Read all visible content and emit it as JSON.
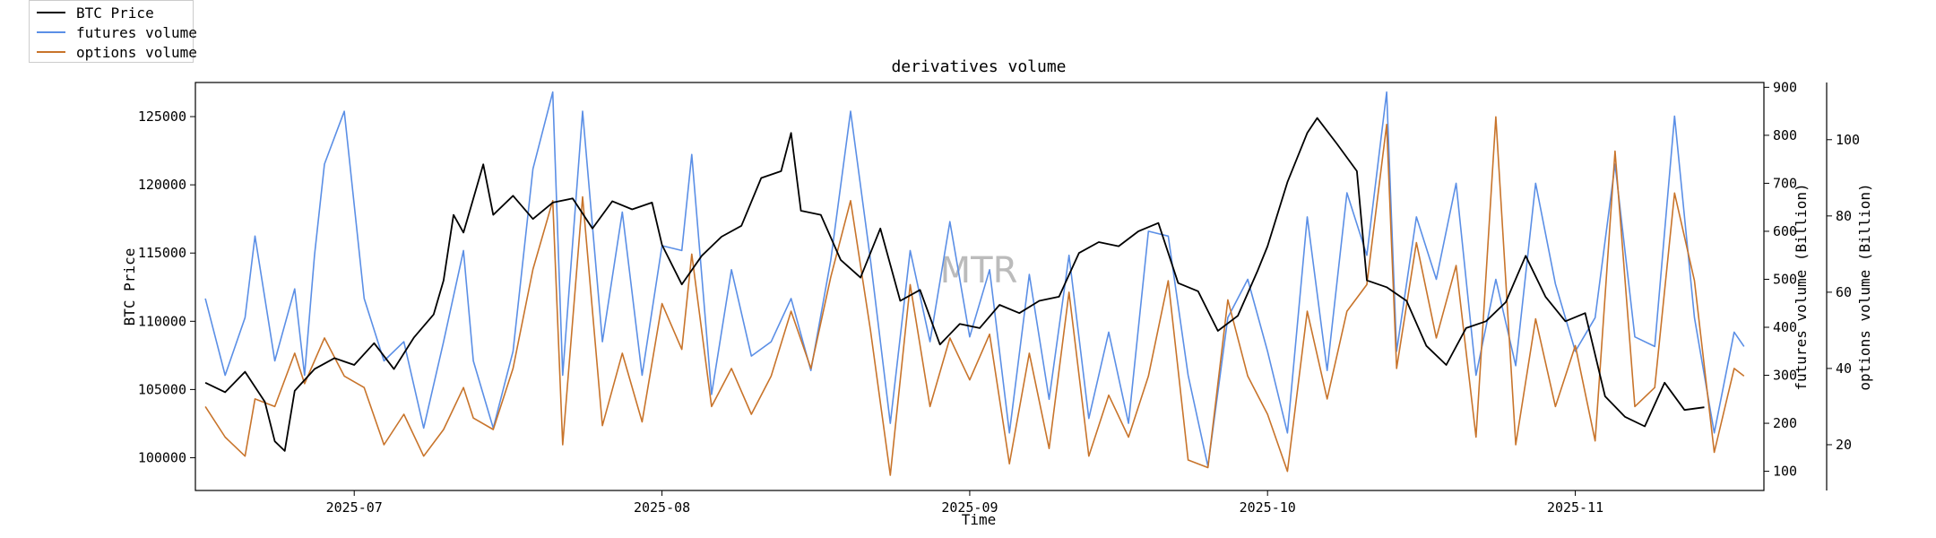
{
  "chart_data": {
    "type": "line",
    "title": "derivatives volume",
    "xlabel": "Time",
    "watermark": "MTR",
    "x_ticks": [
      "2025-07",
      "2025-08",
      "2025-09",
      "2025-10",
      "2025-11"
    ],
    "x_range": [
      "2025-06-15",
      "2025-11-20"
    ],
    "y_left": {
      "label": "BTC Price",
      "ticks": [
        100000,
        105000,
        110000,
        115000,
        120000,
        125000
      ],
      "range": [
        97600,
        127500
      ]
    },
    "y_right1": {
      "label": "futures volume (Billion)",
      "ticks": [
        100,
        200,
        300,
        400,
        500,
        600,
        700,
        800,
        900
      ],
      "range": [
        60,
        910
      ]
    },
    "y_right2": {
      "label": "options volume (Billion)",
      "ticks": [
        20,
        40,
        60,
        80,
        100
      ],
      "range": [
        8,
        115
      ]
    },
    "grid": false,
    "legend_position": "top-left",
    "series": [
      {
        "name": "BTC Price",
        "axis": "left",
        "color": "#000000",
        "points": [
          [
            "2025-06-16",
            105500
          ],
          [
            "2025-06-18",
            104800
          ],
          [
            "2025-06-20",
            106300
          ],
          [
            "2025-06-22",
            104100
          ],
          [
            "2025-06-23",
            101200
          ],
          [
            "2025-06-24",
            100500
          ],
          [
            "2025-06-25",
            104900
          ],
          [
            "2025-06-27",
            106500
          ],
          [
            "2025-06-29",
            107300
          ],
          [
            "2025-07-01",
            106800
          ],
          [
            "2025-07-03",
            108400
          ],
          [
            "2025-07-05",
            106500
          ],
          [
            "2025-07-07",
            108800
          ],
          [
            "2025-07-09",
            110500
          ],
          [
            "2025-07-10",
            113000
          ],
          [
            "2025-07-11",
            117800
          ],
          [
            "2025-07-12",
            116500
          ],
          [
            "2025-07-14",
            121500
          ],
          [
            "2025-07-15",
            117800
          ],
          [
            "2025-07-17",
            119200
          ],
          [
            "2025-07-19",
            117500
          ],
          [
            "2025-07-21",
            118700
          ],
          [
            "2025-07-23",
            119000
          ],
          [
            "2025-07-25",
            116800
          ],
          [
            "2025-07-27",
            118800
          ],
          [
            "2025-07-29",
            118200
          ],
          [
            "2025-07-31",
            118700
          ],
          [
            "2025-08-01",
            115600
          ],
          [
            "2025-08-03",
            112700
          ],
          [
            "2025-08-05",
            114800
          ],
          [
            "2025-08-07",
            116200
          ],
          [
            "2025-08-09",
            117000
          ],
          [
            "2025-08-11",
            120500
          ],
          [
            "2025-08-13",
            121000
          ],
          [
            "2025-08-14",
            123800
          ],
          [
            "2025-08-15",
            118100
          ],
          [
            "2025-08-17",
            117800
          ],
          [
            "2025-08-19",
            114500
          ],
          [
            "2025-08-21",
            113200
          ],
          [
            "2025-08-23",
            116800
          ],
          [
            "2025-08-25",
            111500
          ],
          [
            "2025-08-27",
            112300
          ],
          [
            "2025-08-29",
            108300
          ],
          [
            "2025-08-31",
            109800
          ],
          [
            "2025-09-02",
            109500
          ],
          [
            "2025-09-04",
            111200
          ],
          [
            "2025-09-06",
            110600
          ],
          [
            "2025-09-08",
            111500
          ],
          [
            "2025-09-10",
            111800
          ],
          [
            "2025-09-12",
            115000
          ],
          [
            "2025-09-14",
            115800
          ],
          [
            "2025-09-16",
            115500
          ],
          [
            "2025-09-18",
            116600
          ],
          [
            "2025-09-20",
            117200
          ],
          [
            "2025-09-22",
            112800
          ],
          [
            "2025-09-24",
            112200
          ],
          [
            "2025-09-26",
            109300
          ],
          [
            "2025-09-28",
            110400
          ],
          [
            "2025-09-30",
            113700
          ],
          [
            "2025-10-01",
            115500
          ],
          [
            "2025-10-03",
            120200
          ],
          [
            "2025-10-05",
            123800
          ],
          [
            "2025-10-06",
            124900
          ],
          [
            "2025-10-08",
            123000
          ],
          [
            "2025-10-10",
            121000
          ],
          [
            "2025-10-11",
            113000
          ],
          [
            "2025-10-13",
            112500
          ],
          [
            "2025-10-15",
            111500
          ],
          [
            "2025-10-17",
            108200
          ],
          [
            "2025-10-19",
            106800
          ],
          [
            "2025-10-21",
            109500
          ],
          [
            "2025-10-23",
            110000
          ],
          [
            "2025-10-25",
            111400
          ],
          [
            "2025-10-27",
            114800
          ],
          [
            "2025-10-29",
            111800
          ],
          [
            "2025-10-31",
            110000
          ],
          [
            "2025-11-02",
            110600
          ],
          [
            "2025-11-04",
            104500
          ],
          [
            "2025-11-06",
            103000
          ],
          [
            "2025-11-08",
            102300
          ],
          [
            "2025-11-10",
            105500
          ],
          [
            "2025-11-12",
            103500
          ],
          [
            "2025-11-14",
            103700
          ]
        ]
      },
      {
        "name": "futures volume",
        "axis": "right1",
        "color": "#5b8fe6",
        "points": [
          [
            "2025-06-16",
            460
          ],
          [
            "2025-06-18",
            300
          ],
          [
            "2025-06-20",
            420
          ],
          [
            "2025-06-21",
            590
          ],
          [
            "2025-06-23",
            330
          ],
          [
            "2025-06-25",
            480
          ],
          [
            "2025-06-26",
            300
          ],
          [
            "2025-06-27",
            550
          ],
          [
            "2025-06-28",
            740
          ],
          [
            "2025-06-30",
            850
          ],
          [
            "2025-07-02",
            460
          ],
          [
            "2025-07-04",
            330
          ],
          [
            "2025-07-06",
            370
          ],
          [
            "2025-07-08",
            190
          ],
          [
            "2025-07-10",
            370
          ],
          [
            "2025-07-12",
            560
          ],
          [
            "2025-07-13",
            330
          ],
          [
            "2025-07-15",
            190
          ],
          [
            "2025-07-17",
            350
          ],
          [
            "2025-07-19",
            730
          ],
          [
            "2025-07-21",
            890
          ],
          [
            "2025-07-22",
            300
          ],
          [
            "2025-07-24",
            850
          ],
          [
            "2025-07-26",
            370
          ],
          [
            "2025-07-28",
            640
          ],
          [
            "2025-07-30",
            300
          ],
          [
            "2025-08-01",
            570
          ],
          [
            "2025-08-03",
            560
          ],
          [
            "2025-08-04",
            760
          ],
          [
            "2025-08-06",
            260
          ],
          [
            "2025-08-08",
            520
          ],
          [
            "2025-08-10",
            340
          ],
          [
            "2025-08-12",
            370
          ],
          [
            "2025-08-14",
            460
          ],
          [
            "2025-08-16",
            310
          ],
          [
            "2025-08-18",
            540
          ],
          [
            "2025-08-20",
            850
          ],
          [
            "2025-08-22",
            540
          ],
          [
            "2025-08-24",
            200
          ],
          [
            "2025-08-26",
            560
          ],
          [
            "2025-08-28",
            370
          ],
          [
            "2025-08-30",
            620
          ],
          [
            "2025-09-01",
            380
          ],
          [
            "2025-09-03",
            520
          ],
          [
            "2025-09-05",
            180
          ],
          [
            "2025-09-07",
            510
          ],
          [
            "2025-09-09",
            250
          ],
          [
            "2025-09-11",
            550
          ],
          [
            "2025-09-13",
            210
          ],
          [
            "2025-09-15",
            390
          ],
          [
            "2025-09-17",
            200
          ],
          [
            "2025-09-19",
            600
          ],
          [
            "2025-09-21",
            590
          ],
          [
            "2025-09-23",
            300
          ],
          [
            "2025-09-25",
            110
          ],
          [
            "2025-09-27",
            420
          ],
          [
            "2025-09-29",
            500
          ],
          [
            "2025-10-01",
            350
          ],
          [
            "2025-10-03",
            180
          ],
          [
            "2025-10-05",
            630
          ],
          [
            "2025-10-07",
            310
          ],
          [
            "2025-10-09",
            680
          ],
          [
            "2025-10-11",
            550
          ],
          [
            "2025-10-13",
            890
          ],
          [
            "2025-10-14",
            350
          ],
          [
            "2025-10-16",
            630
          ],
          [
            "2025-10-18",
            500
          ],
          [
            "2025-10-20",
            700
          ],
          [
            "2025-10-22",
            300
          ],
          [
            "2025-10-24",
            500
          ],
          [
            "2025-10-26",
            320
          ],
          [
            "2025-10-28",
            700
          ],
          [
            "2025-10-30",
            490
          ],
          [
            "2025-11-01",
            350
          ],
          [
            "2025-11-03",
            420
          ],
          [
            "2025-11-05",
            740
          ],
          [
            "2025-11-07",
            380
          ],
          [
            "2025-11-09",
            360
          ],
          [
            "2025-11-11",
            840
          ],
          [
            "2025-11-13",
            420
          ],
          [
            "2025-11-15",
            180
          ],
          [
            "2025-11-17",
            390
          ],
          [
            "2025-11-18",
            360
          ]
        ]
      },
      {
        "name": "options volume",
        "axis": "right2",
        "color": "#c8742b",
        "points": [
          [
            "2025-06-16",
            30
          ],
          [
            "2025-06-18",
            22
          ],
          [
            "2025-06-20",
            17
          ],
          [
            "2025-06-21",
            32
          ],
          [
            "2025-06-23",
            30
          ],
          [
            "2025-06-25",
            44
          ],
          [
            "2025-06-26",
            36
          ],
          [
            "2025-06-28",
            48
          ],
          [
            "2025-06-30",
            38
          ],
          [
            "2025-07-02",
            35
          ],
          [
            "2025-07-04",
            20
          ],
          [
            "2025-07-06",
            28
          ],
          [
            "2025-07-08",
            17
          ],
          [
            "2025-07-10",
            24
          ],
          [
            "2025-07-12",
            35
          ],
          [
            "2025-07-13",
            27
          ],
          [
            "2025-07-15",
            24
          ],
          [
            "2025-07-17",
            40
          ],
          [
            "2025-07-19",
            66
          ],
          [
            "2025-07-21",
            84
          ],
          [
            "2025-07-22",
            20
          ],
          [
            "2025-07-24",
            85
          ],
          [
            "2025-07-26",
            25
          ],
          [
            "2025-07-28",
            44
          ],
          [
            "2025-07-30",
            26
          ],
          [
            "2025-08-01",
            57
          ],
          [
            "2025-08-03",
            45
          ],
          [
            "2025-08-04",
            70
          ],
          [
            "2025-08-06",
            30
          ],
          [
            "2025-08-08",
            40
          ],
          [
            "2025-08-10",
            28
          ],
          [
            "2025-08-12",
            38
          ],
          [
            "2025-08-14",
            55
          ],
          [
            "2025-08-16",
            40
          ],
          [
            "2025-08-18",
            64
          ],
          [
            "2025-08-20",
            84
          ],
          [
            "2025-08-22",
            50
          ],
          [
            "2025-08-24",
            12
          ],
          [
            "2025-08-26",
            62
          ],
          [
            "2025-08-28",
            30
          ],
          [
            "2025-08-30",
            48
          ],
          [
            "2025-09-01",
            37
          ],
          [
            "2025-09-03",
            49
          ],
          [
            "2025-09-05",
            15
          ],
          [
            "2025-09-07",
            44
          ],
          [
            "2025-09-09",
            19
          ],
          [
            "2025-09-11",
            60
          ],
          [
            "2025-09-13",
            17
          ],
          [
            "2025-09-15",
            33
          ],
          [
            "2025-09-17",
            22
          ],
          [
            "2025-09-19",
            38
          ],
          [
            "2025-09-21",
            63
          ],
          [
            "2025-09-23",
            16
          ],
          [
            "2025-09-25",
            14
          ],
          [
            "2025-09-27",
            58
          ],
          [
            "2025-09-29",
            38
          ],
          [
            "2025-10-01",
            28
          ],
          [
            "2025-10-03",
            13
          ],
          [
            "2025-10-05",
            55
          ],
          [
            "2025-10-07",
            32
          ],
          [
            "2025-10-09",
            55
          ],
          [
            "2025-10-11",
            62
          ],
          [
            "2025-10-13",
            104
          ],
          [
            "2025-10-14",
            40
          ],
          [
            "2025-10-16",
            73
          ],
          [
            "2025-10-18",
            48
          ],
          [
            "2025-10-20",
            67
          ],
          [
            "2025-10-22",
            22
          ],
          [
            "2025-10-24",
            106
          ],
          [
            "2025-10-26",
            20
          ],
          [
            "2025-10-28",
            53
          ],
          [
            "2025-10-30",
            30
          ],
          [
            "2025-11-01",
            46
          ],
          [
            "2025-11-03",
            21
          ],
          [
            "2025-11-05",
            97
          ],
          [
            "2025-11-07",
            30
          ],
          [
            "2025-11-09",
            35
          ],
          [
            "2025-11-11",
            86
          ],
          [
            "2025-11-13",
            63
          ],
          [
            "2025-11-15",
            18
          ],
          [
            "2025-11-17",
            40
          ],
          [
            "2025-11-18",
            38
          ]
        ]
      }
    ]
  }
}
